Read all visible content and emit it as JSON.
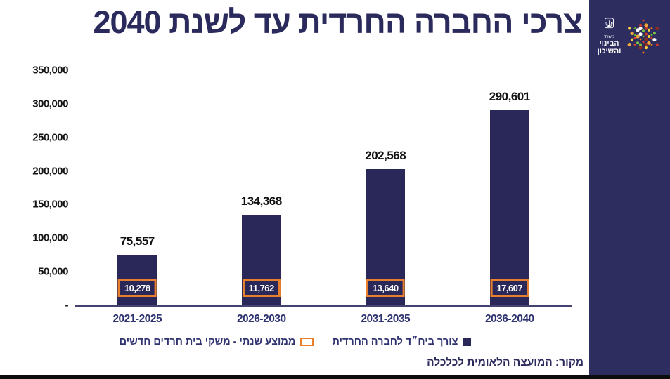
{
  "title": "צרכי החברה החרדית עד לשנת 2040",
  "chart_data": {
    "type": "bar",
    "title": "צרכי החברה החרדית עד לשנת 2040",
    "categories": [
      "2021-2025",
      "2026-2030",
      "2031-2035",
      "2036-2040"
    ],
    "series": [
      {
        "name": "צורך ביח״ד לחברה החרדית",
        "values": [
          75557,
          134368,
          202568,
          290601
        ],
        "labels": [
          "75,557",
          "134,368",
          "202,568",
          "290,601"
        ],
        "color": "#2a2859",
        "style": "filled-bar"
      },
      {
        "name": "ממוצע שנתי - משקי בית חרדים חדשים",
        "values": [
          10278,
          11762,
          13640,
          17607
        ],
        "labels": [
          "10,278",
          "11,762",
          "13,640",
          "17,607"
        ],
        "color": "#e87f2d",
        "style": "outlined-box-inside-bar"
      }
    ],
    "ylim": [
      0,
      350000
    ],
    "yticks": [
      {
        "value": 350000,
        "label": "350,000"
      },
      {
        "value": 300000,
        "label": "300,000"
      },
      {
        "value": 250000,
        "label": "250,000"
      },
      {
        "value": 200000,
        "label": "200,000"
      },
      {
        "value": 150000,
        "label": "150,000"
      },
      {
        "value": 100000,
        "label": "100,000"
      },
      {
        "value": 50000,
        "label": "50,000"
      },
      {
        "value": 0,
        "label": "-"
      }
    ],
    "grid": false,
    "legend_position": "bottom"
  },
  "legend": {
    "item_filled": "צורך ביח״ד לחברה החרדית",
    "item_outlined": "ממוצע שנתי - משקי בית חרדים חדשים"
  },
  "source": "מקור: המועצה הלאומית לכלכלה",
  "sidebar": {
    "logo_lines": [
      "משרד",
      "הבינוי",
      "והשיכון"
    ]
  },
  "colors": {
    "navy": "#2a2859",
    "sidebar_navy": "#2e2d5f",
    "orange": "#e87f2d",
    "label_black": "#111111",
    "axis_navy": "#44426e"
  }
}
